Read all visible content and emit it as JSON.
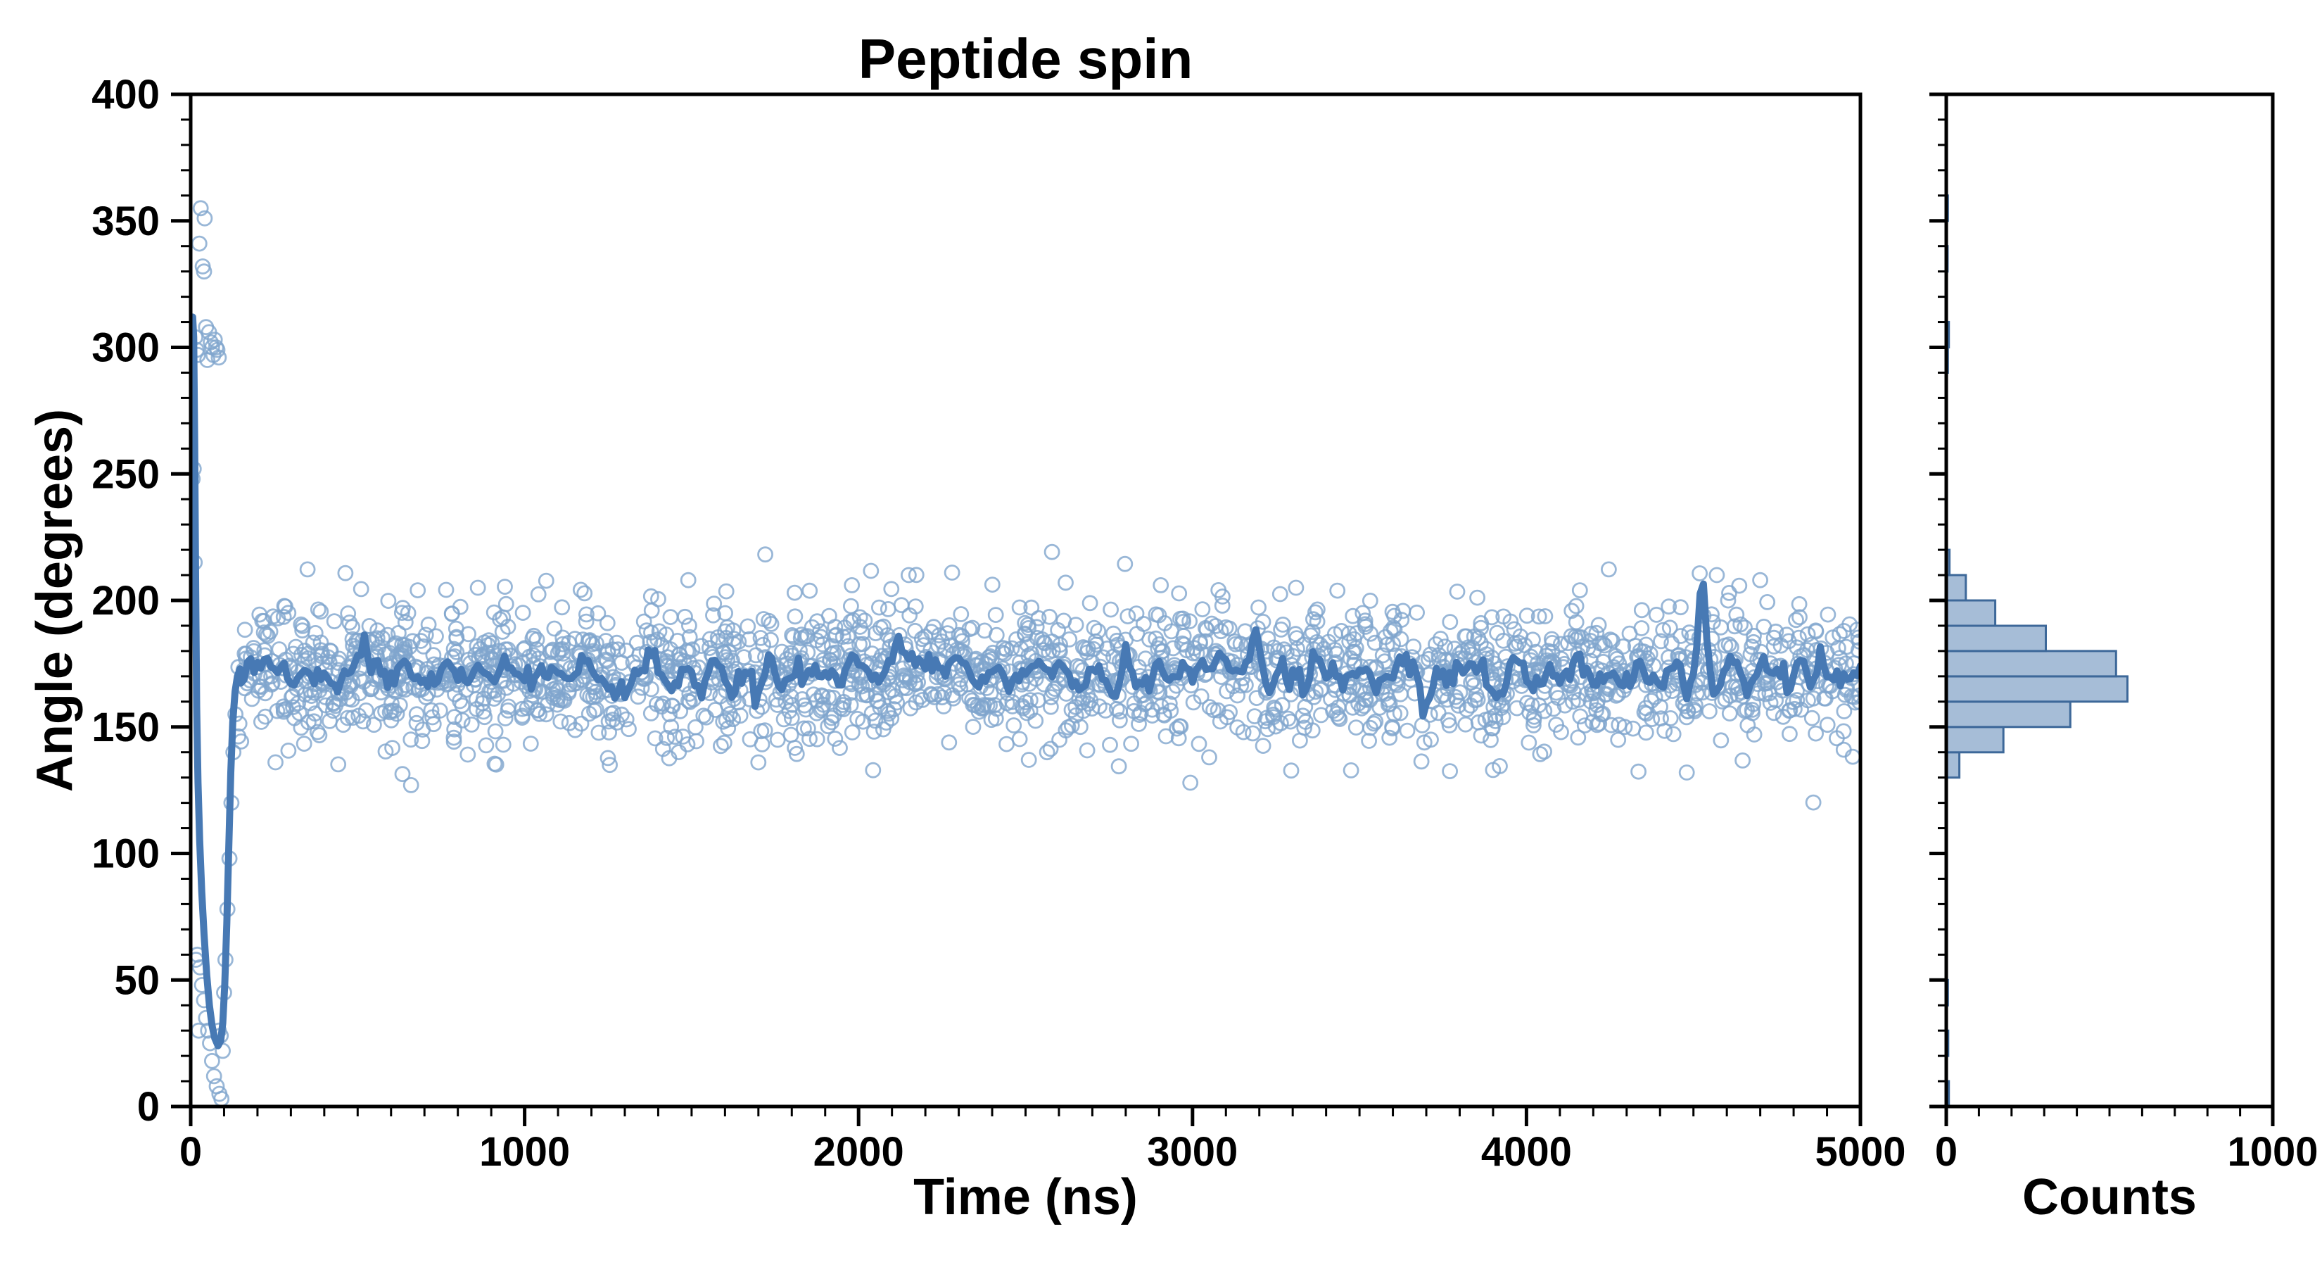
{
  "figure": {
    "background": "#ffffff",
    "spine_color": "#000000"
  },
  "chart_data": {
    "type": "scatter",
    "title": "Peptide spin",
    "main_plot": {
      "xlabel": "Time (ns)",
      "ylabel": "Angle (degrees)",
      "x_axis": {
        "min": 0,
        "max": 5000,
        "major_ticks": [
          0,
          1000,
          2000,
          3000,
          4000,
          5000
        ],
        "minor_step": 100
      },
      "y_axis": {
        "min": 0,
        "max": 400,
        "major_ticks": [
          0,
          50,
          100,
          150,
          200,
          250,
          300,
          350,
          400
        ],
        "minor_step": 10
      },
      "scatter": {
        "marker": "open-circle",
        "color": "#7fa5cd",
        "steady_state": {
          "n": 2100,
          "t_min": 140,
          "t_max": 5000,
          "mean": 171.5,
          "std": 13.5,
          "seed": 1337
        },
        "transient_points": [
          [
            6,
            248
          ],
          [
            9,
            252
          ],
          [
            30,
            355
          ],
          [
            42,
            351
          ],
          [
            26,
            341
          ],
          [
            36,
            332
          ],
          [
            40,
            330
          ],
          [
            14,
            304
          ],
          [
            18,
            299
          ],
          [
            22,
            297
          ],
          [
            46,
            308
          ],
          [
            50,
            295
          ],
          [
            55,
            306
          ],
          [
            60,
            302
          ],
          [
            64,
            300
          ],
          [
            68,
            297
          ],
          [
            72,
            303
          ],
          [
            76,
            300
          ],
          [
            80,
            299
          ],
          [
            84,
            296
          ],
          [
            12,
            215
          ],
          [
            16,
            58
          ],
          [
            20,
            60
          ],
          [
            24,
            30
          ],
          [
            28,
            55
          ],
          [
            34,
            48
          ],
          [
            40,
            42
          ],
          [
            46,
            35
          ],
          [
            52,
            30
          ],
          [
            58,
            25
          ],
          [
            64,
            18
          ],
          [
            70,
            12
          ],
          [
            78,
            8
          ],
          [
            84,
            30
          ],
          [
            86,
            5
          ],
          [
            90,
            28
          ],
          [
            92,
            3
          ],
          [
            96,
            22
          ],
          [
            100,
            45
          ],
          [
            104,
            58
          ],
          [
            110,
            78
          ],
          [
            116,
            98
          ],
          [
            122,
            120
          ],
          [
            128,
            140
          ],
          [
            134,
            155
          ]
        ],
        "outlier_points": [
          [
            660,
            127
          ],
          [
            4480,
            132
          ],
          [
            2280,
            211
          ],
          [
            1490,
            208
          ],
          [
            680,
            204
          ],
          [
            2620,
            207
          ],
          [
            2905,
            206
          ],
          [
            3310,
            205
          ],
          [
            4160,
            204
          ],
          [
            4700,
            208
          ],
          [
            4570,
            210
          ],
          [
            1700,
            136
          ],
          [
            2510,
            137
          ],
          [
            3900,
            133
          ],
          [
            1255,
            135
          ],
          [
            4950,
            141
          ],
          [
            3050,
            138
          ],
          [
            2150,
            210
          ],
          [
            860,
            205
          ],
          [
            1980,
            206
          ]
        ]
      },
      "mean_line": {
        "color": "#4779b4",
        "transient_waypoints": [
          [
            0,
            252
          ],
          [
            3,
            290
          ],
          [
            6,
            312
          ],
          [
            9,
            304
          ],
          [
            12,
            262
          ],
          [
            15,
            205
          ],
          [
            18,
            158
          ],
          [
            22,
            128
          ],
          [
            27,
            105
          ],
          [
            33,
            85
          ],
          [
            40,
            68
          ],
          [
            48,
            52
          ],
          [
            56,
            40
          ],
          [
            64,
            32
          ],
          [
            72,
            27
          ],
          [
            82,
            24
          ],
          [
            90,
            26
          ],
          [
            96,
            33
          ],
          [
            102,
            48
          ],
          [
            108,
            72
          ],
          [
            114,
            102
          ],
          [
            120,
            132
          ],
          [
            126,
            152
          ],
          [
            133,
            164
          ],
          [
            140,
            170
          ],
          [
            148,
            173
          ]
        ],
        "steady_start": 150,
        "step": 10,
        "window": 16,
        "spikes": [
          [
            4525,
            30
          ],
          [
            4565,
            -16
          ],
          [
            2120,
            13
          ],
          [
            3185,
            12
          ],
          [
            1620,
            -10
          ],
          [
            2760,
            -11
          ],
          [
            520,
            10
          ],
          [
            4880,
            8
          ]
        ]
      }
    },
    "histogram": {
      "xlabel": "Counts",
      "x_axis": {
        "min": 0,
        "max": 1000,
        "major_ticks": [
          0,
          1000
        ],
        "minor_step": 100
      },
      "bar_fill": "#a6bdd7",
      "bar_edge": "#3d6899",
      "bin_width": 10,
      "bins": [
        {
          "lo": 0,
          "hi": 10,
          "count": 8
        },
        {
          "lo": 20,
          "hi": 30,
          "count": 6
        },
        {
          "lo": 40,
          "hi": 50,
          "count": 5
        },
        {
          "lo": 120,
          "hi": 130,
          "count": 2
        },
        {
          "lo": 130,
          "hi": 140,
          "count": 40
        },
        {
          "lo": 140,
          "hi": 150,
          "count": 175
        },
        {
          "lo": 150,
          "hi": 160,
          "count": 380
        },
        {
          "lo": 160,
          "hi": 170,
          "count": 555
        },
        {
          "lo": 170,
          "hi": 180,
          "count": 520
        },
        {
          "lo": 180,
          "hi": 190,
          "count": 305
        },
        {
          "lo": 190,
          "hi": 200,
          "count": 150
        },
        {
          "lo": 200,
          "hi": 210,
          "count": 60
        },
        {
          "lo": 210,
          "hi": 220,
          "count": 10
        },
        {
          "lo": 250,
          "hi": 260,
          "count": 2
        },
        {
          "lo": 290,
          "hi": 300,
          "count": 5
        },
        {
          "lo": 300,
          "hi": 310,
          "count": 8
        },
        {
          "lo": 330,
          "hi": 340,
          "count": 4
        },
        {
          "lo": 350,
          "hi": 360,
          "count": 5
        }
      ]
    }
  }
}
